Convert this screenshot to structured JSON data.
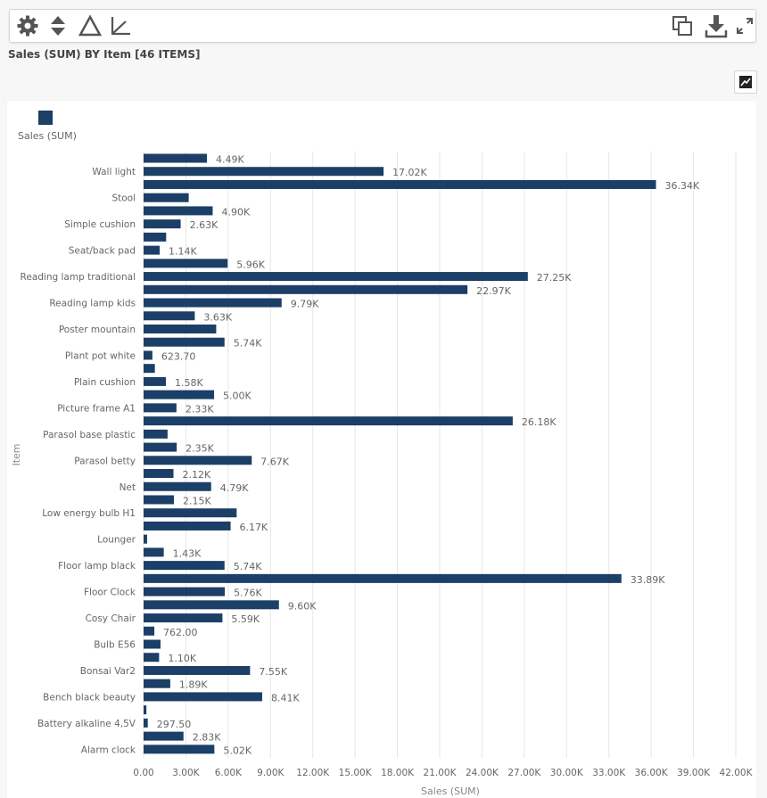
{
  "chart_title": "Sales (SUM) BY Item [46 ITEMS]",
  "toolbar": {
    "left_icons": [
      "gear-icon",
      "sort-icon",
      "triangle-icon",
      "axis-icon"
    ],
    "right_icons": [
      "copy-icon",
      "download-icon",
      "expand-icon"
    ]
  },
  "colors": {
    "bar": "#1b3f66",
    "grid": "#e6e6e6",
    "text": "#666666"
  },
  "legend": {
    "label": "Sales (SUM)"
  },
  "chart_data": {
    "type": "bar",
    "orientation": "horizontal",
    "xlabel": "Sales (SUM)",
    "ylabel": "Item",
    "xlim": [
      0,
      42000
    ],
    "x_ticks": [
      "0.00",
      "3.00K",
      "6.00K",
      "9.00K",
      "12.00K",
      "15.00K",
      "18.00K",
      "21.00K",
      "24.00K",
      "27.00K",
      "30.00K",
      "33.00K",
      "36.00K",
      "39.00K",
      "42.00K"
    ],
    "grid": "vertical",
    "legend_position": "top-left",
    "series": [
      {
        "name": "Sales (SUM)"
      }
    ],
    "bars": [
      {
        "label": "",
        "value": 4490,
        "data_label": "4.49K"
      },
      {
        "label": "Wall light",
        "value": 17020,
        "data_label": "17.02K"
      },
      {
        "label": "",
        "value": 36340,
        "data_label": "36.34K"
      },
      {
        "label": "Stool",
        "value": 3200,
        "data_label": ""
      },
      {
        "label": "",
        "value": 4900,
        "data_label": "4.90K"
      },
      {
        "label": "Simple cushion",
        "value": 2630,
        "data_label": "2.63K"
      },
      {
        "label": "",
        "value": 1600,
        "data_label": ""
      },
      {
        "label": "Seat/back pad",
        "value": 1140,
        "data_label": "1.14K"
      },
      {
        "label": "",
        "value": 5960,
        "data_label": "5.96K"
      },
      {
        "label": "Reading lamp traditional",
        "value": 27250,
        "data_label": "27.25K"
      },
      {
        "label": "",
        "value": 22970,
        "data_label": "22.97K"
      },
      {
        "label": "Reading lamp kids",
        "value": 9790,
        "data_label": "9.79K"
      },
      {
        "label": "",
        "value": 3630,
        "data_label": "3.63K"
      },
      {
        "label": "Poster mountain",
        "value": 5150,
        "data_label": ""
      },
      {
        "label": "",
        "value": 5740,
        "data_label": "5.74K"
      },
      {
        "label": "Plant pot white",
        "value": 623.7,
        "data_label": "623.70"
      },
      {
        "label": "",
        "value": 800,
        "data_label": ""
      },
      {
        "label": "Plain cushion",
        "value": 1580,
        "data_label": "1.58K"
      },
      {
        "label": "",
        "value": 5000,
        "data_label": "5.00K"
      },
      {
        "label": "Picture frame A1",
        "value": 2330,
        "data_label": "2.33K"
      },
      {
        "label": "",
        "value": 26180,
        "data_label": "26.18K"
      },
      {
        "label": "Parasol base plastic",
        "value": 1700,
        "data_label": ""
      },
      {
        "label": "",
        "value": 2350,
        "data_label": "2.35K"
      },
      {
        "label": "Parasol betty",
        "value": 7670,
        "data_label": "7.67K"
      },
      {
        "label": "",
        "value": 2120,
        "data_label": "2.12K"
      },
      {
        "label": "Net",
        "value": 4790,
        "data_label": "4.79K"
      },
      {
        "label": "",
        "value": 2150,
        "data_label": "2.15K"
      },
      {
        "label": "Low energy bulb H1",
        "value": 6600,
        "data_label": ""
      },
      {
        "label": "",
        "value": 6170,
        "data_label": "6.17K"
      },
      {
        "label": "Lounger",
        "value": 250,
        "data_label": ""
      },
      {
        "label": "",
        "value": 1430,
        "data_label": "1.43K"
      },
      {
        "label": "Floor lamp black",
        "value": 5740,
        "data_label": "5.74K"
      },
      {
        "label": "",
        "value": 33890,
        "data_label": "33.89K"
      },
      {
        "label": "Floor Clock",
        "value": 5760,
        "data_label": "5.76K"
      },
      {
        "label": "",
        "value": 9600,
        "data_label": "9.60K"
      },
      {
        "label": "Cosy Chair",
        "value": 5590,
        "data_label": "5.59K"
      },
      {
        "label": "",
        "value": 762,
        "data_label": "762.00"
      },
      {
        "label": "Bulb E56",
        "value": 1200,
        "data_label": ""
      },
      {
        "label": "",
        "value": 1100,
        "data_label": "1.10K"
      },
      {
        "label": "Bonsai Var2",
        "value": 7550,
        "data_label": "7.55K"
      },
      {
        "label": "",
        "value": 1890,
        "data_label": "1.89K"
      },
      {
        "label": "Bench black beauty",
        "value": 8410,
        "data_label": "8.41K"
      },
      {
        "label": "",
        "value": 200,
        "data_label": ""
      },
      {
        "label": "Battery alkaline 4,5V",
        "value": 297.5,
        "data_label": "297.50"
      },
      {
        "label": "",
        "value": 2830,
        "data_label": "2.83K"
      },
      {
        "label": "Alarm clock",
        "value": 5020,
        "data_label": "5.02K"
      }
    ]
  }
}
